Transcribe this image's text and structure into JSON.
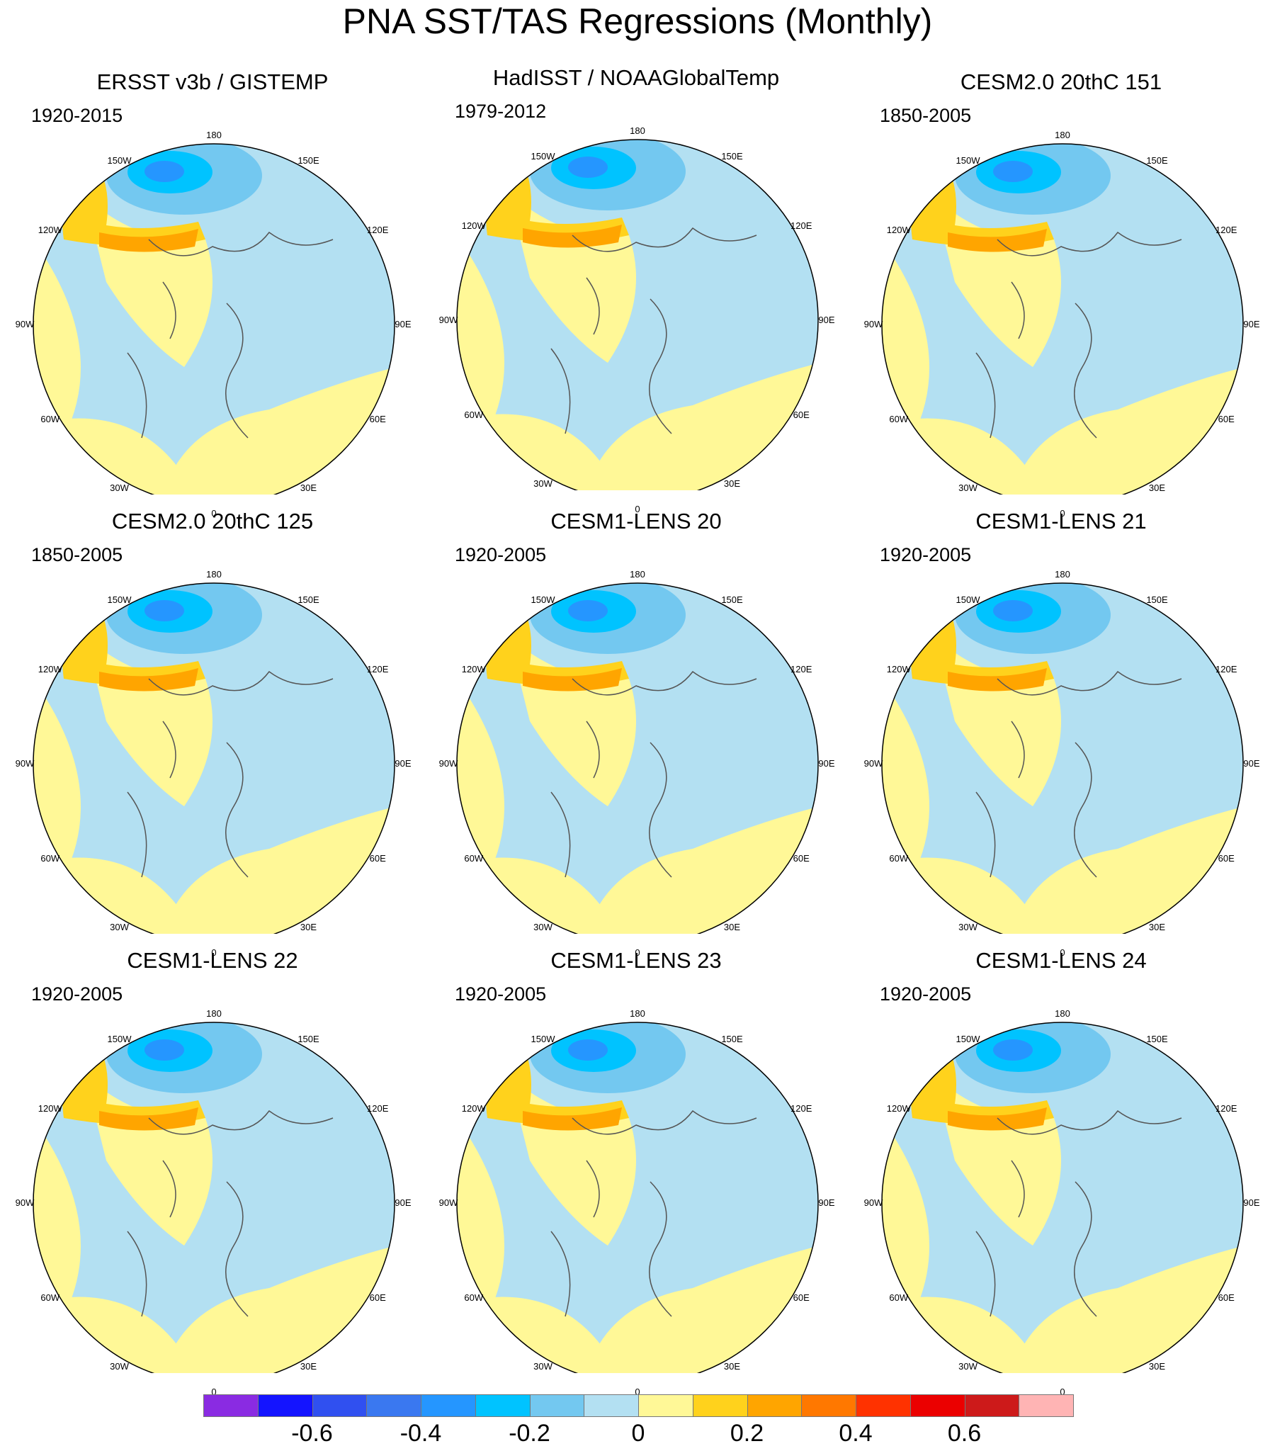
{
  "title": "PNA SST/TAS Regressions (Monthly)",
  "lon_labels": {
    "top": "180",
    "bottom": "0",
    "left": "90W",
    "right": "90E",
    "upper_left": "150W",
    "upper_right": "150E",
    "mid_left_up": "120W",
    "mid_right_up": "120E",
    "mid_left_down": "60W",
    "mid_right_down": "60E",
    "lower_left": "30W",
    "lower_right": "30E"
  },
  "colors": {
    "levels": [
      "#8a2be2",
      "#1414ff",
      "#3050f0",
      "#3a78f0",
      "#2596ff",
      "#00c3ff",
      "#73c8f0",
      "#b3e0f2",
      "#fff897",
      "#ffd21c",
      "#ffa500",
      "#ff7800",
      "#ff3200",
      "#eb0000",
      "#cd1a1a",
      "#ffb4b4"
    ],
    "land_outline": "#555555"
  },
  "colorbar": {
    "labels": [
      {
        "text": "-0.6",
        "pos": 2
      },
      {
        "text": "-0.4",
        "pos": 4
      },
      {
        "text": "-0.2",
        "pos": 6
      },
      {
        "text": "0",
        "pos": 8
      },
      {
        "text": "0.2",
        "pos": 10
      },
      {
        "text": "0.4",
        "pos": 12
      },
      {
        "text": "0.6",
        "pos": 14
      }
    ]
  },
  "panels": [
    {
      "title": "ERSST v3b / GISTEMP",
      "period": "1920-2015"
    },
    {
      "title": "HadISST / NOAAGlobalTemp",
      "period": "1979-2012"
    },
    {
      "title": "CESM2.0 20thC 151",
      "period": "1850-2005"
    },
    {
      "title": "CESM2.0 20thC 125",
      "period": "1850-2005"
    },
    {
      "title": "CESM1-LENS 20",
      "period": "1920-2005"
    },
    {
      "title": "CESM1-LENS 21",
      "period": "1920-2005"
    },
    {
      "title": "CESM1-LENS 22",
      "period": "1920-2005"
    },
    {
      "title": "CESM1-LENS 23",
      "period": "1920-2005"
    },
    {
      "title": "CESM1-LENS 24",
      "period": "1920-2005"
    }
  ]
}
